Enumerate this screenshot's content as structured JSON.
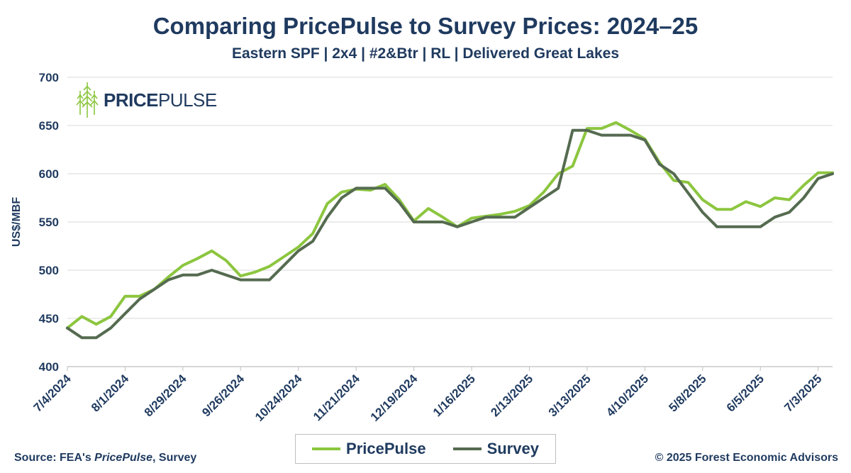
{
  "header": {
    "title": "Comparing PricePulse to Survey Prices: 2024–25",
    "subtitle": "Eastern SPF | 2x4 | #2&Btr | RL | Delivered Great Lakes"
  },
  "logo": {
    "text_bold": "PRICE",
    "text_light": "PULSE",
    "icon": "tree-icon"
  },
  "footer": {
    "source_prefix": "Source: FEA's ",
    "source_italic": "PricePulse",
    "source_suffix": ", Survey",
    "copyright": "© 2025 Forest Economic Advisors"
  },
  "colors": {
    "pricepulse": "#8cc63f",
    "survey": "#556b50",
    "text": "#1f3a5f",
    "grid": "#d9d9d9"
  },
  "chart_data": {
    "type": "line",
    "title": "Comparing PricePulse to Survey Prices: 2024–25",
    "subtitle": "Eastern SPF | 2x4 | #2&Btr | RL | Delivered Great Lakes",
    "ylabel": "US$/MBF",
    "xlabel": "",
    "ylim": [
      400,
      700
    ],
    "yticks": [
      400,
      450,
      500,
      550,
      600,
      650,
      700
    ],
    "xtick_labels": [
      "7/4/2024",
      "8/1/2024",
      "8/29/2024",
      "9/26/2024",
      "10/24/2024",
      "11/21/2024",
      "12/19/2024",
      "1/16/2025",
      "2/13/2025",
      "3/13/2025",
      "4/10/2025",
      "5/8/2025",
      "6/5/2025",
      "7/3/2025"
    ],
    "x_start": "7/4/2024",
    "x_end": "7/10/2025",
    "grid": true,
    "legend_position": "bottom",
    "series": [
      {
        "name": "PricePulse",
        "color": "#8cc63f",
        "values": [
          440,
          452,
          444,
          452,
          473,
          473,
          480,
          493,
          505,
          512,
          520,
          510,
          494,
          498,
          504,
          514,
          524,
          538,
          569,
          581,
          584,
          583,
          589,
          573,
          551,
          564,
          555,
          545,
          554,
          556,
          558,
          561,
          567,
          581,
          600,
          608,
          647,
          647,
          653,
          645,
          636,
          612,
          593,
          591,
          573,
          563,
          563,
          571,
          566,
          575,
          573,
          588,
          601,
          601
        ]
      },
      {
        "name": "Survey",
        "color": "#556b50",
        "values": [
          440,
          430,
          430,
          440,
          455,
          470,
          480,
          490,
          495,
          495,
          500,
          495,
          490,
          490,
          490,
          505,
          520,
          530,
          555,
          575,
          585,
          585,
          585,
          570,
          550,
          550,
          550,
          545,
          550,
          555,
          555,
          555,
          565,
          575,
          585,
          645,
          645,
          640,
          640,
          640,
          635,
          610,
          600,
          580,
          560,
          545,
          545,
          545,
          545,
          555,
          560,
          575,
          595,
          600
        ]
      }
    ]
  }
}
